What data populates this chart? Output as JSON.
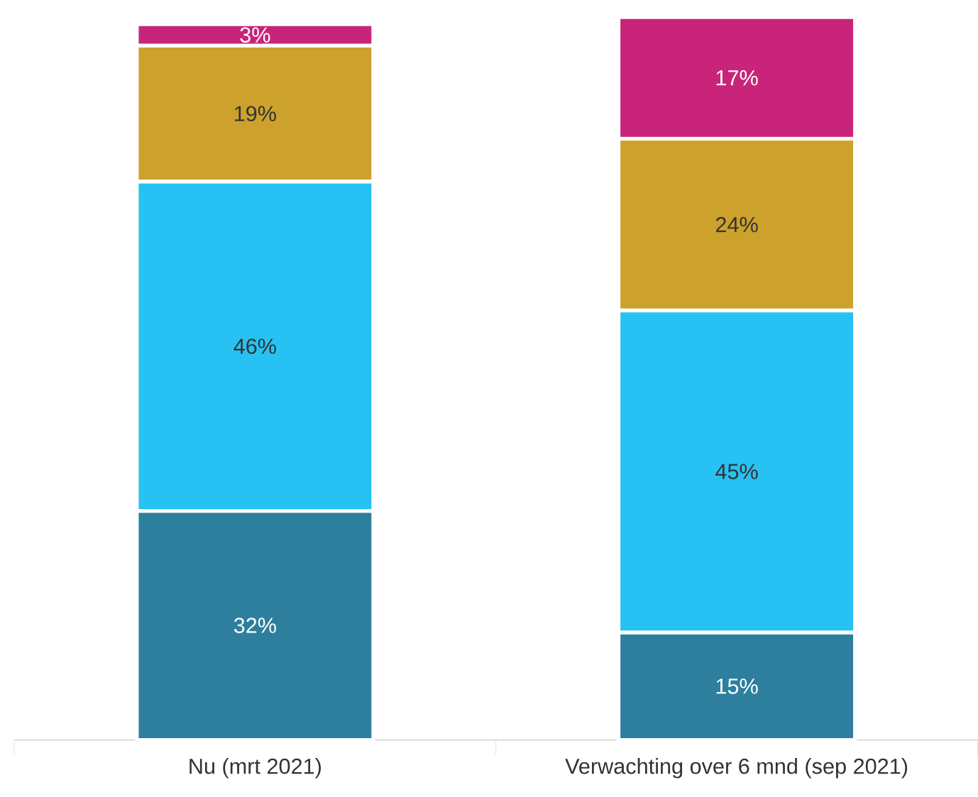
{
  "chart_data": {
    "type": "bar",
    "stacked": true,
    "tick_labels": "x",
    "categories": [
      "Nu (mrt 2021)",
      "Verwachting over 6 mnd (sep 2021)"
    ],
    "series": [
      {
        "color": "#2e7f9e",
        "values": [
          32,
          15
        ],
        "value_labels": [
          "32%",
          "15%"
        ]
      },
      {
        "color": "#27c2f3",
        "values": [
          46,
          45
        ],
        "value_labels": [
          "46%",
          "45%"
        ]
      },
      {
        "color": "#cca22c",
        "values": [
          19,
          24
        ],
        "value_labels": [
          "19%",
          "24%"
        ]
      },
      {
        "color": "#c8257a",
        "values": [
          3,
          17
        ],
        "value_labels": [
          "3%",
          "17%"
        ]
      }
    ]
  }
}
